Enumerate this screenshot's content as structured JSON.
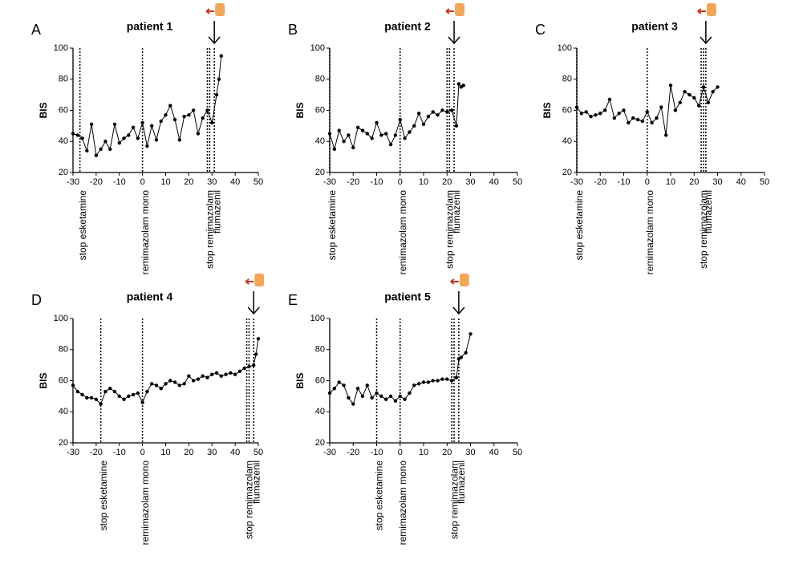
{
  "chart_data": [
    {
      "type": "line",
      "panel": "A",
      "title": "patient 1",
      "ylabel": "BIS",
      "color": "#000000",
      "xlim": [
        -30,
        50
      ],
      "ylim": [
        20,
        100
      ],
      "xticks": [
        -30,
        -20,
        -10,
        0,
        10,
        20,
        30,
        40,
        50
      ],
      "yticks": [
        20,
        40,
        60,
        80,
        100
      ],
      "markers": [
        {
          "label": "stop esketamine",
          "x": [
            -27
          ]
        },
        {
          "label": "remimazolam mono",
          "x": [
            0
          ]
        },
        {
          "label": "stop remimazolam",
          "x": [
            28,
            29
          ]
        },
        {
          "label": "flumazenil",
          "x": [
            31
          ]
        }
      ],
      "x": [
        -30,
        -28,
        -26,
        -24,
        -22,
        -20,
        -18,
        -16,
        -14,
        -12,
        -10,
        -8,
        -6,
        -4,
        -2,
        0,
        2,
        4,
        6,
        8,
        10,
        12,
        14,
        16,
        18,
        20,
        22,
        24,
        26,
        28,
        30,
        32,
        33,
        34
      ],
      "values": [
        45,
        44,
        42,
        34,
        51,
        31,
        35,
        40,
        35,
        51,
        39,
        42,
        44,
        49,
        42,
        52,
        37,
        50,
        41,
        53,
        57,
        63,
        54,
        41,
        56,
        57,
        60,
        45,
        55,
        60,
        52,
        70,
        80,
        95
      ]
    },
    {
      "type": "line",
      "panel": "B",
      "title": "patient 2",
      "ylabel": "BIS",
      "color": "#000000",
      "xlim": [
        -30,
        50
      ],
      "ylim": [
        20,
        100
      ],
      "xticks": [
        -30,
        -20,
        -10,
        0,
        10,
        20,
        30,
        40,
        50
      ],
      "yticks": [
        20,
        40,
        60,
        80,
        100
      ],
      "markers": [
        {
          "label": "stop esketamine",
          "x": [
            -30
          ]
        },
        {
          "label": "remimazolam mono",
          "x": [
            0
          ]
        },
        {
          "label": "stop remimazolam",
          "x": [
            20,
            21
          ]
        },
        {
          "label": "flumazenil",
          "x": [
            23
          ]
        }
      ],
      "x": [
        -30,
        -28,
        -26,
        -24,
        -22,
        -20,
        -18,
        -16,
        -14,
        -12,
        -10,
        -8,
        -6,
        -4,
        -2,
        0,
        2,
        4,
        6,
        8,
        10,
        12,
        14,
        16,
        18,
        20,
        22,
        24,
        25,
        26,
        27
      ],
      "values": [
        45,
        35,
        47,
        40,
        44,
        36,
        49,
        47,
        45,
        42,
        52,
        44,
        45,
        38,
        44,
        54,
        42,
        46,
        50,
        58,
        51,
        56,
        59,
        57,
        60,
        59,
        60,
        50,
        77,
        75,
        76
      ]
    },
    {
      "type": "line",
      "panel": "C",
      "title": "patient 3",
      "ylabel": "BIS",
      "color": "#000000",
      "xlim": [
        -30,
        50
      ],
      "ylim": [
        20,
        100
      ],
      "xticks": [
        -30,
        -20,
        -10,
        0,
        10,
        20,
        30,
        40,
        50
      ],
      "yticks": [
        20,
        40,
        60,
        80,
        100
      ],
      "markers": [
        {
          "label": "stop esketamine",
          "x": [
            -30
          ]
        },
        {
          "label": "remimazolam mono",
          "x": [
            0
          ]
        },
        {
          "label": "stop remimazolam",
          "x": [
            23,
            24
          ]
        },
        {
          "label": "flumazenil",
          "x": [
            25
          ]
        }
      ],
      "x": [
        -30,
        -28,
        -26,
        -24,
        -22,
        -20,
        -18,
        -16,
        -14,
        -12,
        -10,
        -8,
        -6,
        -4,
        -2,
        0,
        2,
        4,
        6,
        8,
        10,
        12,
        14,
        16,
        18,
        20,
        22,
        24,
        26,
        28,
        30
      ],
      "values": [
        62,
        58,
        59,
        56,
        57,
        58,
        60,
        67,
        55,
        58,
        60,
        52,
        55,
        54,
        53,
        59,
        52,
        55,
        62,
        44,
        76,
        60,
        65,
        72,
        70,
        68,
        63,
        75,
        65,
        72,
        75
      ]
    },
    {
      "type": "line",
      "panel": "D",
      "title": "patient 4",
      "ylabel": "BIS",
      "color": "#000000",
      "xlim": [
        -30,
        50
      ],
      "ylim": [
        20,
        100
      ],
      "xticks": [
        -30,
        -20,
        -10,
        0,
        10,
        20,
        30,
        40,
        50
      ],
      "yticks": [
        20,
        40,
        60,
        80,
        100
      ],
      "markers": [
        {
          "label": "stop esketamine",
          "x": [
            -18
          ]
        },
        {
          "label": "remimazolam mono",
          "x": [
            0
          ]
        },
        {
          "label": "stop remimazolam",
          "x": [
            45,
            46
          ]
        },
        {
          "label": "flumazenil",
          "x": [
            48
          ]
        }
      ],
      "x": [
        -30,
        -28,
        -26,
        -24,
        -22,
        -20,
        -18,
        -16,
        -14,
        -12,
        -10,
        -8,
        -6,
        -4,
        -2,
        0,
        2,
        4,
        6,
        8,
        10,
        12,
        14,
        16,
        18,
        20,
        22,
        24,
        26,
        28,
        30,
        32,
        34,
        36,
        38,
        40,
        42,
        44,
        46,
        48,
        49,
        50
      ],
      "values": [
        57,
        53,
        51,
        49,
        49,
        48,
        45,
        53,
        55,
        53,
        50,
        48,
        50,
        51,
        52,
        46,
        53,
        58,
        57,
        55,
        58,
        60,
        59,
        57,
        58,
        63,
        60,
        61,
        63,
        62,
        64,
        65,
        63,
        64,
        65,
        64,
        66,
        68,
        69,
        70,
        77,
        87
      ]
    },
    {
      "type": "line",
      "panel": "E",
      "title": "patient 5",
      "ylabel": "BIS",
      "color": "#000000",
      "xlim": [
        -30,
        50
      ],
      "ylim": [
        20,
        100
      ],
      "xticks": [
        -30,
        -20,
        -10,
        0,
        10,
        20,
        30,
        40,
        50
      ],
      "yticks": [
        20,
        40,
        60,
        80,
        100
      ],
      "markers": [
        {
          "label": "stop esketamine",
          "x": [
            -10
          ]
        },
        {
          "label": "remimazolam mono",
          "x": [
            0
          ]
        },
        {
          "label": "stop remimazolam",
          "x": [
            22,
            23
          ]
        },
        {
          "label": "flumazenil",
          "x": [
            25
          ]
        }
      ],
      "x": [
        -30,
        -28,
        -26,
        -24,
        -22,
        -20,
        -18,
        -16,
        -14,
        -12,
        -10,
        -8,
        -6,
        -4,
        -2,
        0,
        2,
        4,
        6,
        8,
        10,
        12,
        14,
        16,
        18,
        20,
        22,
        24,
        25,
        26,
        28,
        30
      ],
      "values": [
        52,
        55,
        59,
        57,
        49,
        45,
        55,
        50,
        57,
        49,
        52,
        50,
        48,
        50,
        47,
        50,
        48,
        52,
        57,
        58,
        59,
        59,
        60,
        60,
        61,
        61,
        60,
        62,
        74,
        75,
        78,
        90
      ]
    }
  ]
}
